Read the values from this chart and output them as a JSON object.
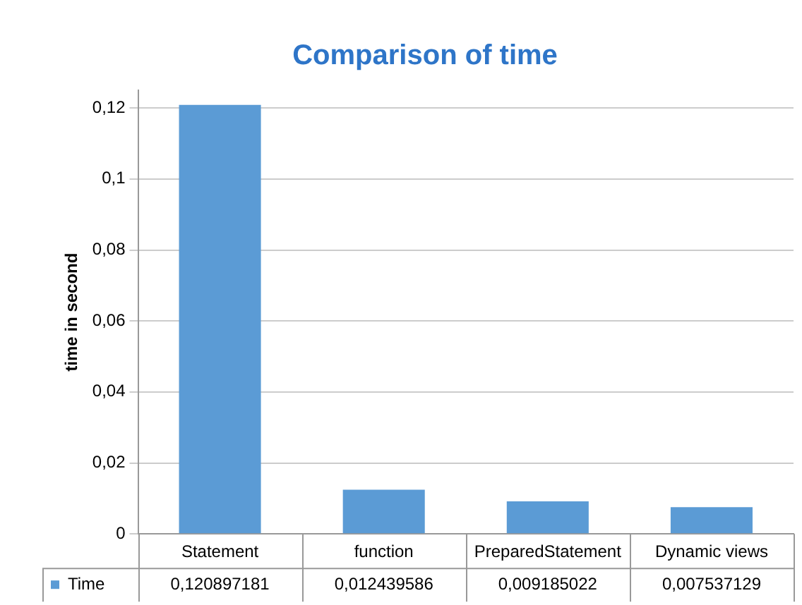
{
  "chart_data": {
    "type": "bar",
    "title": "Comparison of time",
    "ylabel": "time in second",
    "categories": [
      "Statement",
      "function",
      "PreparedStatement",
      "Dynamic views"
    ],
    "series": [
      {
        "name": "Time",
        "color": "#5b9bd5",
        "values": [
          0.120897181,
          0.012439586,
          0.009185022,
          0.007537129
        ],
        "value_labels": [
          "0,120897181",
          "0,012439586",
          "0,009185022",
          "0,007537129"
        ]
      }
    ],
    "ylim": [
      0,
      0.125
    ],
    "yticks": [
      0,
      {
        "value": 0.02,
        "label": "0,02"
      },
      {
        "value": 0.04,
        "label": "0,04"
      },
      {
        "value": 0.06,
        "label": "0,06"
      },
      {
        "value": 0.08,
        "label": "0,08"
      },
      {
        "value": 0.1,
        "label": "0,1"
      },
      {
        "value": 0.12,
        "label": "0,12"
      }
    ],
    "grid": "y",
    "legend": "bottom"
  }
}
